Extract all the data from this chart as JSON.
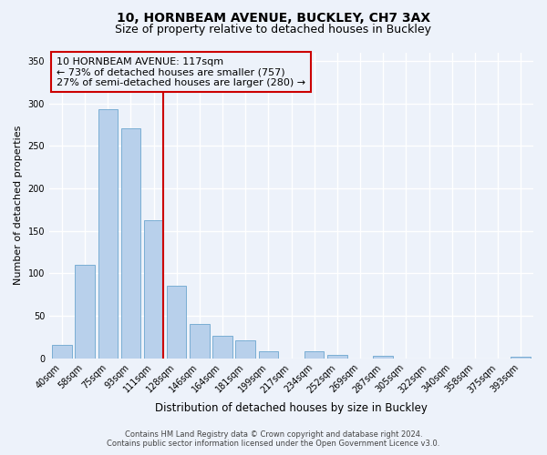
{
  "title": "10, HORNBEAM AVENUE, BUCKLEY, CH7 3AX",
  "subtitle": "Size of property relative to detached houses in Buckley",
  "xlabel": "Distribution of detached houses by size in Buckley",
  "ylabel": "Number of detached properties",
  "bar_labels": [
    "40sqm",
    "58sqm",
    "75sqm",
    "93sqm",
    "111sqm",
    "128sqm",
    "146sqm",
    "164sqm",
    "181sqm",
    "199sqm",
    "217sqm",
    "234sqm",
    "252sqm",
    "269sqm",
    "287sqm",
    "305sqm",
    "322sqm",
    "340sqm",
    "358sqm",
    "375sqm",
    "393sqm"
  ],
  "bar_values": [
    16,
    110,
    293,
    271,
    163,
    85,
    41,
    27,
    21,
    8,
    0,
    8,
    4,
    0,
    3,
    0,
    0,
    0,
    0,
    0,
    2
  ],
  "bar_color": "#b8d0eb",
  "bar_edge_color": "#7aaed4",
  "ylim": [
    0,
    360
  ],
  "yticks": [
    0,
    50,
    100,
    150,
    200,
    250,
    300,
    350
  ],
  "vline_index": 3,
  "vline_color": "#cc0000",
  "annotation_title": "10 HORNBEAM AVENUE: 117sqm",
  "annotation_line1": "← 73% of detached houses are smaller (757)",
  "annotation_line2": "27% of semi-detached houses are larger (280) →",
  "annotation_box_color": "#cc0000",
  "footer1": "Contains HM Land Registry data © Crown copyright and database right 2024.",
  "footer2": "Contains public sector information licensed under the Open Government Licence v3.0.",
  "bg_color": "#edf2fa",
  "plot_bg_color": "#edf2fa",
  "grid_color": "#ffffff",
  "title_fontsize": 10,
  "subtitle_fontsize": 9,
  "annotation_fontsize": 8,
  "tick_fontsize": 7,
  "ylabel_fontsize": 8,
  "xlabel_fontsize": 8.5
}
